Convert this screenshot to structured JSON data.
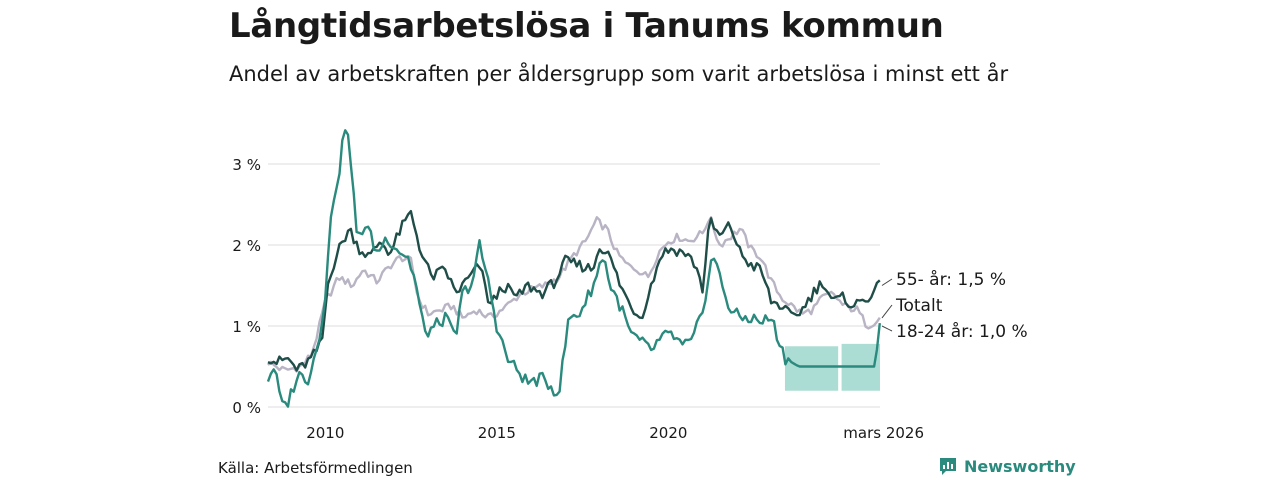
{
  "title": "Långtidsarbetslösa i Tanums kommun",
  "subtitle": "Andel av arbetskraften per åldersgrupp som varit arbetslösa i minst ett år",
  "source": "Källa: Arbetsförmedlingen",
  "brand": "Newsworthy",
  "chart_data": {
    "type": "line",
    "title": "Långtidsarbetslösa i Tanums kommun",
    "xlabel": "",
    "ylabel": "",
    "x_start": 2008.33,
    "x_end": 2026.17,
    "xlim": [
      2008.33,
      2026.17
    ],
    "ylim": [
      0,
      3.7
    ],
    "y_ticks": [
      0,
      1,
      2,
      3
    ],
    "y_tick_labels": [
      "0 %",
      "1 %",
      "2 %",
      "3 %"
    ],
    "x_ticks": [
      2010,
      2015,
      2020,
      2026.17
    ],
    "x_tick_labels": [
      "2010",
      "2015",
      "2020",
      "mars 2026"
    ],
    "series": [
      {
        "name": "Totalt",
        "color": "#b9b4c4",
        "label": "Totalt",
        "keypoints": [
          [
            2008.33,
            0.55
          ],
          [
            2008.8,
            0.45
          ],
          [
            2009.3,
            0.5
          ],
          [
            2009.6,
            0.65
          ],
          [
            2009.8,
            0.95
          ],
          [
            2010.0,
            1.3
          ],
          [
            2010.4,
            1.6
          ],
          [
            2010.8,
            1.5
          ],
          [
            2011.1,
            1.7
          ],
          [
            2011.5,
            1.55
          ],
          [
            2011.9,
            1.75
          ],
          [
            2012.2,
            1.85
          ],
          [
            2012.5,
            1.8
          ],
          [
            2012.7,
            1.35
          ],
          [
            2013.0,
            1.15
          ],
          [
            2013.4,
            1.2
          ],
          [
            2013.7,
            1.25
          ],
          [
            2014.0,
            1.1
          ],
          [
            2014.4,
            1.2
          ],
          [
            2014.8,
            1.1
          ],
          [
            2015.3,
            1.25
          ],
          [
            2015.7,
            1.4
          ],
          [
            2016.0,
            1.45
          ],
          [
            2016.4,
            1.5
          ],
          [
            2016.8,
            1.6
          ],
          [
            2017.2,
            1.85
          ],
          [
            2017.6,
            2.05
          ],
          [
            2017.9,
            2.3
          ],
          [
            2018.2,
            2.2
          ],
          [
            2018.5,
            1.9
          ],
          [
            2018.8,
            1.75
          ],
          [
            2019.1,
            1.7
          ],
          [
            2019.4,
            1.6
          ],
          [
            2019.7,
            1.9
          ],
          [
            2020.0,
            2.05
          ],
          [
            2020.3,
            2.1
          ],
          [
            2020.6,
            2.05
          ],
          [
            2021.0,
            2.15
          ],
          [
            2021.2,
            2.35
          ],
          [
            2021.5,
            2.0
          ],
          [
            2021.8,
            2.1
          ],
          [
            2022.1,
            2.2
          ],
          [
            2022.4,
            1.95
          ],
          [
            2022.7,
            1.85
          ],
          [
            2023.0,
            1.55
          ],
          [
            2023.3,
            1.35
          ],
          [
            2023.6,
            1.25
          ],
          [
            2023.9,
            1.15
          ],
          [
            2024.2,
            1.2
          ],
          [
            2024.5,
            1.35
          ],
          [
            2024.8,
            1.4
          ],
          [
            2025.1,
            1.25
          ],
          [
            2025.5,
            1.2
          ],
          [
            2025.8,
            1.0
          ],
          [
            2026.17,
            1.1
          ]
        ],
        "amplitude": 0.05
      },
      {
        "name": "55- år",
        "color": "#1f4d47",
        "label": "55- år: 1,5 %",
        "last_value": 1.5,
        "keypoints": [
          [
            2008.33,
            0.62
          ],
          [
            2008.6,
            0.55
          ],
          [
            2008.9,
            0.6
          ],
          [
            2009.2,
            0.45
          ],
          [
            2009.6,
            0.6
          ],
          [
            2009.9,
            0.8
          ],
          [
            2010.1,
            1.6
          ],
          [
            2010.4,
            1.95
          ],
          [
            2010.7,
            2.2
          ],
          [
            2011.0,
            1.95
          ],
          [
            2011.3,
            1.85
          ],
          [
            2011.6,
            2.05
          ],
          [
            2011.9,
            1.9
          ],
          [
            2012.2,
            2.2
          ],
          [
            2012.5,
            2.4
          ],
          [
            2012.8,
            1.9
          ],
          [
            2013.1,
            1.6
          ],
          [
            2013.5,
            1.7
          ],
          [
            2013.8,
            1.4
          ],
          [
            2014.1,
            1.55
          ],
          [
            2014.5,
            1.75
          ],
          [
            2014.8,
            1.25
          ],
          [
            2015.2,
            1.5
          ],
          [
            2015.6,
            1.35
          ],
          [
            2015.9,
            1.5
          ],
          [
            2016.3,
            1.4
          ],
          [
            2016.7,
            1.55
          ],
          [
            2017.0,
            1.8
          ],
          [
            2017.4,
            1.75
          ],
          [
            2017.8,
            1.7
          ],
          [
            2018.0,
            2.0
          ],
          [
            2018.3,
            1.85
          ],
          [
            2018.6,
            1.5
          ],
          [
            2018.9,
            1.25
          ],
          [
            2019.2,
            1.1
          ],
          [
            2019.5,
            1.5
          ],
          [
            2019.8,
            1.9
          ],
          [
            2020.1,
            1.95
          ],
          [
            2020.5,
            1.9
          ],
          [
            2020.8,
            1.75
          ],
          [
            2021.0,
            1.45
          ],
          [
            2021.2,
            2.3
          ],
          [
            2021.5,
            2.1
          ],
          [
            2021.8,
            2.25
          ],
          [
            2022.1,
            1.9
          ],
          [
            2022.4,
            1.75
          ],
          [
            2022.7,
            1.7
          ],
          [
            2023.0,
            1.3
          ],
          [
            2023.3,
            1.25
          ],
          [
            2023.6,
            1.1
          ],
          [
            2023.9,
            1.2
          ],
          [
            2024.2,
            1.4
          ],
          [
            2024.5,
            1.55
          ],
          [
            2024.8,
            1.3
          ],
          [
            2025.1,
            1.35
          ],
          [
            2025.4,
            1.25
          ],
          [
            2025.8,
            1.35
          ],
          [
            2026.17,
            1.5
          ]
        ],
        "amplitude": 0.07
      },
      {
        "name": "18-24 år",
        "color": "#2a8a7d",
        "label": "18-24 år: 1,0 %",
        "last_value": 1.0,
        "keypoints": [
          [
            2008.33,
            0.35
          ],
          [
            2008.5,
            0.5
          ],
          [
            2008.75,
            0.0
          ],
          [
            2008.9,
            0.05
          ],
          [
            2009.2,
            0.4
          ],
          [
            2009.5,
            0.35
          ],
          [
            2009.8,
            0.8
          ],
          [
            2010.0,
            1.4
          ],
          [
            2010.2,
            2.5
          ],
          [
            2010.4,
            2.9
          ],
          [
            2010.6,
            3.55
          ],
          [
            2010.8,
            2.8
          ],
          [
            2010.9,
            2.1
          ],
          [
            2011.2,
            2.25
          ],
          [
            2011.5,
            1.9
          ],
          [
            2011.8,
            2.1
          ],
          [
            2012.1,
            1.95
          ],
          [
            2012.4,
            1.85
          ],
          [
            2012.6,
            1.6
          ],
          [
            2012.9,
            0.9
          ],
          [
            2013.2,
            1.0
          ],
          [
            2013.5,
            1.1
          ],
          [
            2013.8,
            0.85
          ],
          [
            2014.0,
            1.4
          ],
          [
            2014.3,
            1.55
          ],
          [
            2014.5,
            2.0
          ],
          [
            2014.8,
            1.45
          ],
          [
            2015.0,
            1.0
          ],
          [
            2015.3,
            0.6
          ],
          [
            2015.6,
            0.45
          ],
          [
            2015.9,
            0.3
          ],
          [
            2016.3,
            0.35
          ],
          [
            2016.6,
            0.25
          ],
          [
            2016.8,
            0.15
          ],
          [
            2017.1,
            1.1
          ],
          [
            2017.4,
            1.15
          ],
          [
            2017.7,
            1.4
          ],
          [
            2017.9,
            1.6
          ],
          [
            2018.1,
            1.9
          ],
          [
            2018.3,
            1.5
          ],
          [
            2018.6,
            1.25
          ],
          [
            2018.9,
            0.9
          ],
          [
            2019.2,
            0.8
          ],
          [
            2019.5,
            0.7
          ],
          [
            2019.8,
            0.85
          ],
          [
            2020.1,
            0.9
          ],
          [
            2020.4,
            0.75
          ],
          [
            2020.7,
            0.8
          ],
          [
            2021.0,
            1.2
          ],
          [
            2021.3,
            1.9
          ],
          [
            2021.5,
            1.6
          ],
          [
            2021.8,
            1.2
          ],
          [
            2022.1,
            1.1
          ],
          [
            2022.4,
            1.1
          ],
          [
            2022.7,
            1.05
          ],
          [
            2023.0,
            1.1
          ],
          [
            2023.4,
            0.6
          ],
          [
            2023.8,
            0.5
          ],
          [
            2024.3,
            0.5
          ],
          [
            2024.6,
            0.5
          ],
          [
            2025.0,
            0.5
          ],
          [
            2025.5,
            0.5
          ],
          [
            2026.0,
            0.5
          ],
          [
            2026.17,
            1.0
          ]
        ],
        "amplitude": 0.08,
        "flat_from": 2023.5
      }
    ],
    "uncertainty_band": {
      "series": "18-24 år",
      "color": "#8fd1c5",
      "segments": [
        {
          "x": [
            2023.4,
            2024.95
          ],
          "lower": 0.2,
          "upper": 0.75
        },
        {
          "x": [
            2025.05,
            2026.17
          ],
          "lower": 0.2,
          "upper": 0.78
        }
      ]
    }
  }
}
